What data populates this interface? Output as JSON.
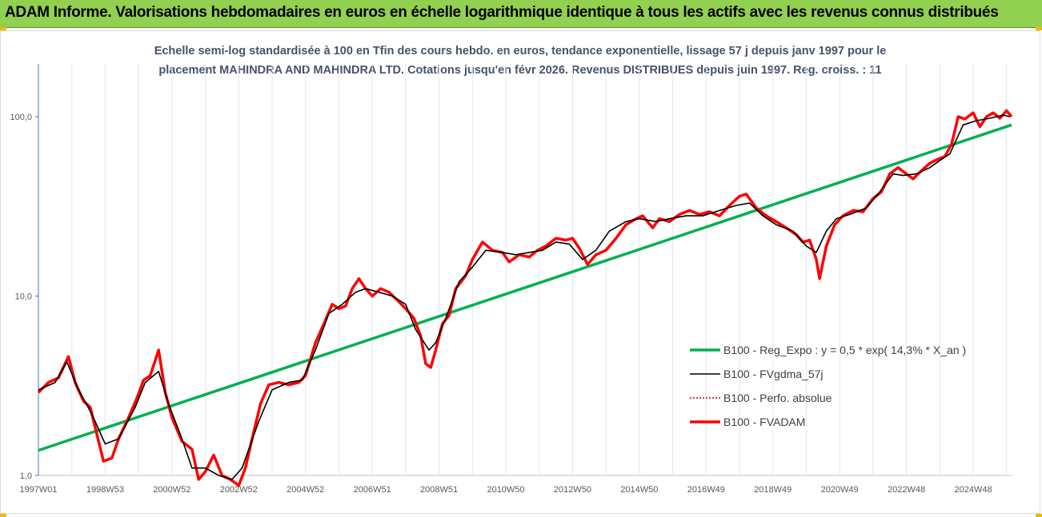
{
  "header": {
    "title": "ADAM Informe. Valorisations hebdomadaires en euros en échelle logarithmique identique à tous les actifs avec les revenus connus distribués"
  },
  "chart_data": {
    "type": "line",
    "title_line1": "Echelle semi-log standardisée à 100 en Tfin des cours hebdo. en euros, tendance exponentielle, lissage 57 j  depuis janv 1997 pour le",
    "title_line2": "placement MAHINDRA AND MAHINDRA LTD. Cotations jusqu'en févr 2026. Revenus DISTRIBUES depuis juin 1997. Reg. croiss. : 11",
    "y_scale": "log",
    "ylim": [
      1,
      100
    ],
    "y_ticks": [
      "1,0",
      "10,0",
      "100,0"
    ],
    "x_range": [
      1997.0,
      2026.15
    ],
    "x_ticks": [
      "1997W01",
      "1998W53",
      "2000W52",
      "2002W52",
      "2004W52",
      "2006W51",
      "2008W51",
      "2010W50",
      "2012W50",
      "2014W50",
      "2016W49",
      "2018W49",
      "2020W49",
      "2022W48",
      "2024W48"
    ],
    "x_tick_years": [
      1997.0,
      1999.0,
      2001.0,
      2003.0,
      2005.0,
      2007.0,
      2009.0,
      2011.0,
      2013.0,
      2015.0,
      2017.0,
      2019.0,
      2021.0,
      2023.0,
      2025.0
    ],
    "grid": "vertical",
    "legend_position": "lower-right",
    "series": [
      {
        "name": "B100 - Reg_Expo : y = 0,5 * exp( 14,3% *  X_an )",
        "color": "#00b050",
        "style": "solid-thick",
        "x": [
          1997.0,
          2026.15
        ],
        "values": [
          1.38,
          90.0
        ]
      },
      {
        "name": "B100 - FVgdma_57j",
        "color": "#000000",
        "style": "solid-thin",
        "x": [
          1997.0,
          1997.5,
          1997.85,
          1998.2,
          1998.6,
          1999.0,
          1999.4,
          1999.9,
          2000.2,
          2000.6,
          2000.9,
          2001.3,
          2001.6,
          2002.0,
          2002.4,
          2002.8,
          2003.1,
          2003.6,
          2004.0,
          2004.5,
          2004.9,
          2005.3,
          2005.7,
          2006.1,
          2006.5,
          2006.8,
          2007.2,
          2007.6,
          2008.0,
          2008.3,
          2008.7,
          2008.9,
          2009.2,
          2009.6,
          2010.0,
          2010.4,
          2010.9,
          2011.3,
          2011.7,
          2012.1,
          2012.5,
          2012.9,
          2013.3,
          2013.7,
          2014.1,
          2014.6,
          2015.0,
          2015.5,
          2015.9,
          2016.4,
          2016.9,
          2017.4,
          2017.9,
          2018.3,
          2018.7,
          2019.1,
          2019.6,
          2020.0,
          2020.3,
          2020.6,
          2020.9,
          2021.3,
          2021.8,
          2022.2,
          2022.6,
          2022.9,
          2023.3,
          2023.7,
          2024.0,
          2024.3,
          2024.7,
          2025.1,
          2025.5,
          2025.9,
          2026.1
        ],
        "values": [
          3.0,
          3.3,
          4.3,
          3.0,
          2.2,
          1.5,
          1.6,
          2.4,
          3.3,
          3.8,
          2.5,
          1.6,
          1.1,
          1.1,
          1.0,
          0.95,
          1.1,
          2.0,
          3.0,
          3.3,
          3.4,
          5.0,
          8.0,
          9.0,
          10.5,
          11.0,
          10.5,
          10.0,
          9.0,
          6.5,
          5.0,
          5.5,
          7.5,
          12.0,
          14.5,
          18.0,
          17.5,
          17.0,
          17.5,
          18.0,
          20.0,
          19.5,
          16.0,
          18.0,
          23.0,
          26.0,
          27.0,
          26.0,
          27.0,
          28.0,
          28.0,
          30.0,
          32.0,
          33.0,
          28.0,
          25.0,
          23.0,
          19.0,
          17.5,
          23.0,
          27.0,
          28.5,
          31.0,
          38.0,
          48.0,
          47.0,
          48.0,
          52.0,
          57.0,
          62.0,
          90.0,
          95.0,
          98.0,
          102.0,
          100.0
        ]
      },
      {
        "name": "B100 - Perfo. absolue",
        "color": "#c00000",
        "style": "dotted",
        "x": [],
        "values": []
      },
      {
        "name": "B100 - FVADAM",
        "color": "#ff0000",
        "style": "solid-thick",
        "x": [
          1997.0,
          1997.3,
          1997.6,
          1997.9,
          1998.1,
          1998.35,
          1998.55,
          1998.75,
          1998.95,
          1999.2,
          1999.4,
          1999.7,
          1999.95,
          2000.15,
          2000.35,
          2000.6,
          2000.8,
          2001.0,
          2001.3,
          2001.6,
          2001.8,
          2002.0,
          2002.25,
          2002.5,
          2002.75,
          2003.0,
          2003.2,
          2003.4,
          2003.65,
          2003.9,
          2004.2,
          2004.5,
          2004.8,
          2005.0,
          2005.3,
          2005.55,
          2005.8,
          2006.0,
          2006.2,
          2006.4,
          2006.6,
          2006.8,
          2007.0,
          2007.25,
          2007.5,
          2007.75,
          2008.0,
          2008.25,
          2008.45,
          2008.6,
          2008.75,
          2008.9,
          2009.1,
          2009.3,
          2009.5,
          2009.8,
          2010.0,
          2010.3,
          2010.6,
          2010.9,
          2011.1,
          2011.4,
          2011.7,
          2011.95,
          2012.2,
          2012.5,
          2012.8,
          2013.0,
          2013.2,
          2013.45,
          2013.7,
          2014.0,
          2014.3,
          2014.6,
          2014.9,
          2015.1,
          2015.4,
          2015.6,
          2015.9,
          2016.2,
          2016.5,
          2016.8,
          2017.1,
          2017.4,
          2017.7,
          2018.0,
          2018.2,
          2018.5,
          2018.8,
          2019.1,
          2019.4,
          2019.7,
          2019.9,
          2020.1,
          2020.3,
          2020.4,
          2020.6,
          2020.85,
          2021.1,
          2021.4,
          2021.7,
          2022.0,
          2022.25,
          2022.5,
          2022.75,
          2023.0,
          2023.2,
          2023.45,
          2023.7,
          2023.95,
          2024.15,
          2024.35,
          2024.55,
          2024.75,
          2025.0,
          2025.2,
          2025.4,
          2025.6,
          2025.8,
          2026.0,
          2026.15
        ],
        "values": [
          2.9,
          3.3,
          3.5,
          4.6,
          3.3,
          2.6,
          2.4,
          1.7,
          1.2,
          1.25,
          1.6,
          2.1,
          2.7,
          3.4,
          3.6,
          5.0,
          2.9,
          2.1,
          1.55,
          1.4,
          0.95,
          1.05,
          1.3,
          1.0,
          0.95,
          0.88,
          1.1,
          1.6,
          2.5,
          3.2,
          3.3,
          3.2,
          3.3,
          3.6,
          5.5,
          7.0,
          9.0,
          8.5,
          8.8,
          11.0,
          12.5,
          11.0,
          10.0,
          11.0,
          10.5,
          9.5,
          8.5,
          7.5,
          6.0,
          4.2,
          4.0,
          5.0,
          7.0,
          7.8,
          11.0,
          13.0,
          16.0,
          20.0,
          18.0,
          17.5,
          15.5,
          17.0,
          16.5,
          18.0,
          19.0,
          21.0,
          20.5,
          21.0,
          18.5,
          15.0,
          17.0,
          18.0,
          21.0,
          25.0,
          27.0,
          28.0,
          24.0,
          27.0,
          26.0,
          28.5,
          30.0,
          28.5,
          29.5,
          28.0,
          32.0,
          36.0,
          37.0,
          31.0,
          28.0,
          26.0,
          24.0,
          22.0,
          20.0,
          20.5,
          16.0,
          12.5,
          19.0,
          25.0,
          28.0,
          30.0,
          29.5,
          35.0,
          38.0,
          48.0,
          52.0,
          48.0,
          45.0,
          50.0,
          55.0,
          58.0,
          60.0,
          70.0,
          100.0,
          97.0,
          105.0,
          88.0,
          100.0,
          105.0,
          98.0,
          108.0,
          100.0
        ]
      }
    ]
  }
}
